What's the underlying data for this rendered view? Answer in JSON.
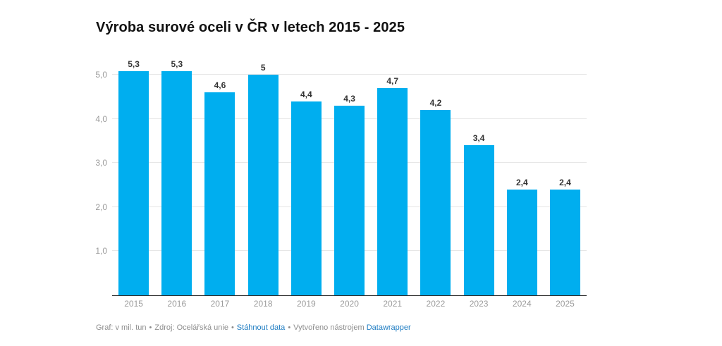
{
  "header": {
    "title": "Výroba surové oceli v ČR v letech 2015 - 2025"
  },
  "chart_data": {
    "type": "bar",
    "title": "Výroba surové oceli v ČR v letech 2015 - 2025",
    "categories": [
      "2015",
      "2016",
      "2017",
      "2018",
      "2019",
      "2020",
      "2021",
      "2022",
      "2023",
      "2024",
      "2025"
    ],
    "values": [
      5.3,
      5.3,
      4.6,
      5,
      4.4,
      4.3,
      4.7,
      4.2,
      3.4,
      2.4,
      2.4
    ],
    "value_labels": [
      "5,3",
      "5,3",
      "4,6",
      "5",
      "4,4",
      "4,3",
      "4,7",
      "4,2",
      "3,4",
      "2,4",
      "2,4"
    ],
    "xlabel": "",
    "ylabel": "",
    "unit": "mil. tun",
    "ylim": [
      0,
      5.5
    ],
    "y_tick_values": [
      1,
      2,
      3,
      4,
      5
    ],
    "y_tick_labels": [
      "1,0",
      "2,0",
      "3,0",
      "4,0",
      "5,0"
    ],
    "grid": "horizontal",
    "legend_position": "none",
    "bar_color": "#00aeef"
  },
  "footer": {
    "note": "Graf: v mil. tun",
    "source": "Zdroj: Ocelářská unie",
    "download_link": "Stáhnout data",
    "created_with": "Vytvořeno nástrojem",
    "tool_link": "Datawrapper",
    "separator": "•"
  },
  "colors": {
    "bar": "#00aeef",
    "gridline": "#e6e6e6",
    "baseline": "#2f2f2f",
    "axis_text": "#9b9b9b",
    "value_label": "#333333",
    "footer_text": "#8e8e8e",
    "link": "#1e7cc2"
  }
}
